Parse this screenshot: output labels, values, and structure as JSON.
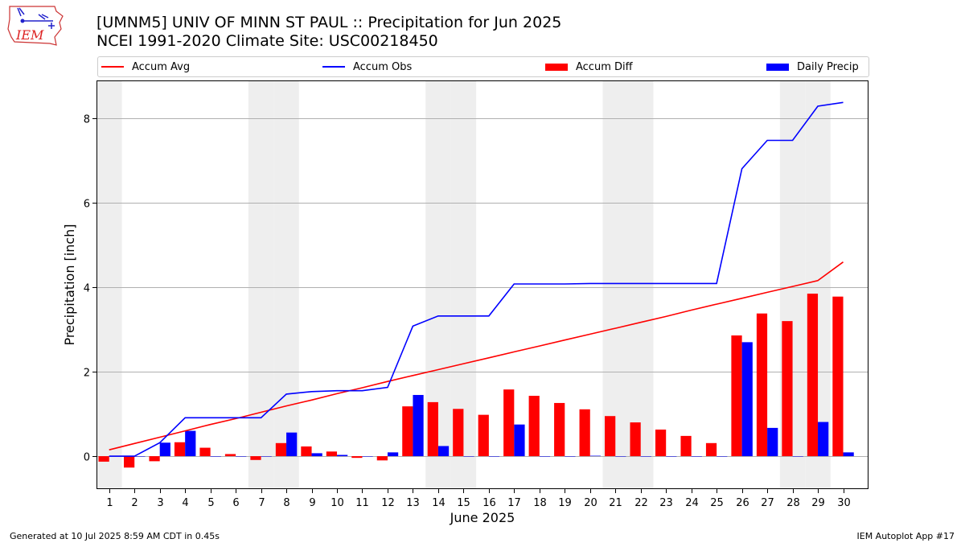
{
  "header": {
    "title_line1": "[UMNM5] UNIV OF MINN ST PAUL :: Precipitation for Jun 2025",
    "title_line2": "NCEI 1991-2020 Climate Site: USC00218450",
    "logo_text": "IEM"
  },
  "footer": {
    "left": "Generated at 10 Jul 2025 8:59 AM CDT in 0.45s",
    "right": "IEM Autoplot App #17"
  },
  "colors": {
    "avg": "#ff0000",
    "obs": "#0000ff",
    "diff": "#ff0000",
    "daily": "#0000ff",
    "weekend_shade": "#eeeeee",
    "grid": "#b0b0b0"
  },
  "chart_data": {
    "type": "bar",
    "xlabel": "June 2025",
    "ylabel": "Precipitation [inch]",
    "ylim": [
      -0.78,
      8.9
    ],
    "yticks": [
      0,
      2,
      4,
      6,
      8
    ],
    "grid": "horizontal",
    "legend_placement": "top",
    "legend": [
      "Accum Avg",
      "Accum Obs",
      "Accum Diff",
      "Daily Precip"
    ],
    "shaded_days": [
      1,
      7,
      8,
      14,
      15,
      21,
      22,
      28,
      29
    ],
    "x": [
      1,
      2,
      3,
      4,
      5,
      6,
      7,
      8,
      9,
      10,
      11,
      12,
      13,
      14,
      15,
      16,
      17,
      18,
      19,
      20,
      21,
      22,
      23,
      24,
      25,
      26,
      27,
      28,
      29,
      30
    ],
    "series": [
      {
        "name": "Accum Avg",
        "kind": "line",
        "values": [
          0.15,
          0.3,
          0.45,
          0.6,
          0.75,
          0.89,
          1.04,
          1.19,
          1.33,
          1.48,
          1.62,
          1.77,
          1.91,
          2.05,
          2.19,
          2.33,
          2.47,
          2.61,
          2.75,
          2.89,
          3.03,
          3.17,
          3.31,
          3.46,
          3.6,
          3.74,
          3.88,
          4.02,
          4.16,
          4.6
        ]
      },
      {
        "name": "Accum Obs",
        "kind": "line",
        "values": [
          0.0,
          0.0,
          0.32,
          0.91,
          0.91,
          0.91,
          0.91,
          1.47,
          1.53,
          1.55,
          1.55,
          1.63,
          3.08,
          3.32,
          3.32,
          3.32,
          4.08,
          4.08,
          4.08,
          4.09,
          4.09,
          4.09,
          4.09,
          4.09,
          4.09,
          6.81,
          7.48,
          7.48,
          8.29,
          8.38
        ]
      },
      {
        "name": "Accum Diff",
        "kind": "bar",
        "values": [
          -0.13,
          -0.27,
          -0.12,
          0.33,
          0.2,
          0.05,
          -0.09,
          0.31,
          0.23,
          0.11,
          -0.04,
          -0.1,
          1.18,
          1.28,
          1.12,
          0.98,
          1.58,
          1.43,
          1.26,
          1.11,
          0.95,
          0.8,
          0.63,
          0.48,
          0.31,
          2.86,
          3.38,
          3.2,
          3.85,
          3.78
        ]
      },
      {
        "name": "Daily Precip",
        "kind": "bar",
        "values": [
          0.0,
          0.0,
          0.32,
          0.6,
          0.0,
          0.0,
          0.0,
          0.56,
          0.07,
          0.03,
          0.0,
          0.09,
          1.45,
          0.24,
          0.0,
          0.0,
          0.75,
          0.0,
          0.0,
          0.01,
          0.0,
          0.0,
          0.0,
          0.0,
          0.0,
          2.7,
          0.67,
          0.0,
          0.81,
          0.09
        ]
      }
    ]
  }
}
